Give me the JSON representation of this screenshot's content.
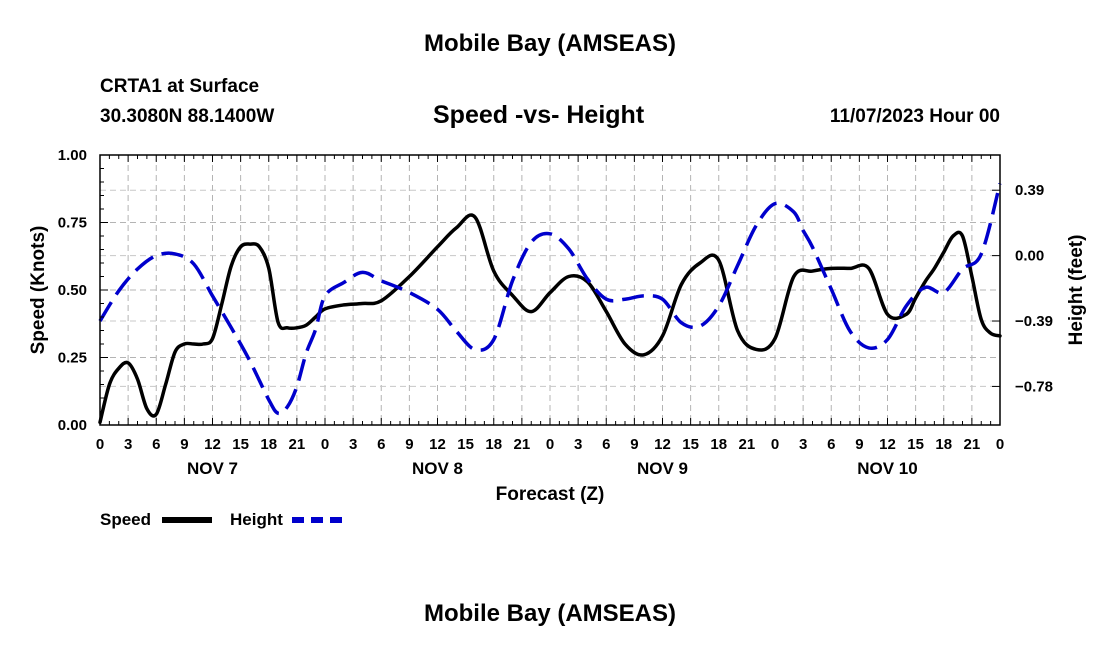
{
  "page": {
    "title": "Mobile Bay (AMSEAS)",
    "station": "CRTA1 at Surface",
    "coords": "30.3080N  88.1400W",
    "date": "11/07/2023 Hour 00",
    "footer_title": "Mobile Bay (AMSEAS)"
  },
  "chart_data": {
    "type": "line",
    "title": "Speed -vs- Height",
    "xlabel": "Forecast (Z)",
    "ylabel_left": "Speed (Knots)",
    "ylabel_right": "Height (feet)",
    "x_range_hours": [
      0,
      96
    ],
    "x_tick_labels": [
      "0",
      "3",
      "6",
      "9",
      "12",
      "15",
      "18",
      "21",
      "0",
      "3",
      "6",
      "9",
      "12",
      "15",
      "18",
      "21",
      "0",
      "3",
      "6",
      "9",
      "12",
      "15",
      "18",
      "21",
      "0",
      "3",
      "6",
      "9",
      "12",
      "15",
      "18",
      "21",
      "0"
    ],
    "day_labels": [
      {
        "hour": 12,
        "label": "NOV 7"
      },
      {
        "hour": 36,
        "label": "NOV 8"
      },
      {
        "hour": 60,
        "label": "NOV 9"
      },
      {
        "hour": 84,
        "label": "NOV 10"
      }
    ],
    "left_axis": {
      "min": 0.0,
      "max": 1.0,
      "ticks": [
        0.0,
        0.25,
        0.5,
        0.75,
        1.0
      ],
      "tick_labels": [
        "0.00",
        "0.25",
        "0.50",
        "0.75",
        "1.00"
      ]
    },
    "right_axis": {
      "min": -1.01,
      "max": 0.6,
      "ticks": [
        0.39,
        0.0,
        -0.39,
        -0.78
      ],
      "tick_labels": [
        "0.39",
        "0.00",
        "−0.39",
        "−0.78"
      ]
    },
    "grid": true,
    "series": [
      {
        "name": "Speed",
        "axis": "left",
        "color": "#000000",
        "dash": "solid",
        "x": [
          0,
          1,
          2,
          3,
          4,
          5,
          6,
          7,
          8,
          9,
          10,
          11,
          12,
          13,
          14,
          15,
          16,
          17,
          18,
          19,
          20,
          21,
          22,
          23,
          24,
          26,
          28,
          30,
          33,
          36,
          38,
          40,
          42,
          44,
          46,
          48,
          50,
          52,
          54,
          56,
          58,
          60,
          62,
          64,
          66,
          68,
          70,
          72,
          74,
          76,
          78,
          80,
          82,
          84,
          86,
          87,
          88,
          89,
          90,
          91,
          92,
          93,
          94,
          95,
          96
        ],
        "y": [
          0.01,
          0.15,
          0.21,
          0.23,
          0.17,
          0.06,
          0.04,
          0.15,
          0.27,
          0.3,
          0.3,
          0.3,
          0.32,
          0.45,
          0.59,
          0.66,
          0.67,
          0.66,
          0.58,
          0.38,
          0.36,
          0.36,
          0.37,
          0.4,
          0.43,
          0.445,
          0.45,
          0.46,
          0.55,
          0.66,
          0.73,
          0.77,
          0.57,
          0.48,
          0.42,
          0.49,
          0.55,
          0.53,
          0.42,
          0.3,
          0.26,
          0.33,
          0.52,
          0.6,
          0.61,
          0.35,
          0.28,
          0.32,
          0.55,
          0.57,
          0.58,
          0.58,
          0.58,
          0.41,
          0.41,
          0.47,
          0.53,
          0.58,
          0.64,
          0.7,
          0.7,
          0.55,
          0.39,
          0.34,
          0.33
        ]
      },
      {
        "name": "Height",
        "axis": "right",
        "color": "#0000cc",
        "dash": "dashed",
        "x": [
          0,
          2,
          4,
          6,
          8,
          10,
          12,
          14,
          16,
          18,
          19,
          20,
          21,
          22,
          23,
          24,
          26,
          28,
          30,
          33,
          36,
          38,
          40,
          42,
          44,
          46,
          48,
          50,
          52,
          54,
          56,
          58,
          60,
          62,
          64,
          66,
          68,
          70,
          72,
          74,
          75,
          76,
          78,
          80,
          82,
          84,
          86,
          88,
          90,
          92,
          94,
          96
        ],
        "y": [
          -0.39,
          -0.21,
          -0.08,
          0.0,
          0.01,
          -0.05,
          -0.24,
          -0.43,
          -0.63,
          -0.86,
          -0.94,
          -0.9,
          -0.78,
          -0.58,
          -0.44,
          -0.24,
          -0.16,
          -0.1,
          -0.15,
          -0.22,
          -0.32,
          -0.45,
          -0.56,
          -0.5,
          -0.15,
          0.08,
          0.13,
          0.04,
          -0.14,
          -0.26,
          -0.26,
          -0.24,
          -0.26,
          -0.4,
          -0.42,
          -0.3,
          -0.06,
          0.18,
          0.31,
          0.26,
          0.15,
          0.05,
          -0.2,
          -0.45,
          -0.55,
          -0.5,
          -0.3,
          -0.19,
          -0.22,
          -0.08,
          0.01,
          0.43
        ]
      }
    ],
    "legend": [
      {
        "label": "Speed",
        "color": "#000000"
      },
      {
        "label": "Height",
        "color": "#0000cc"
      }
    ]
  }
}
